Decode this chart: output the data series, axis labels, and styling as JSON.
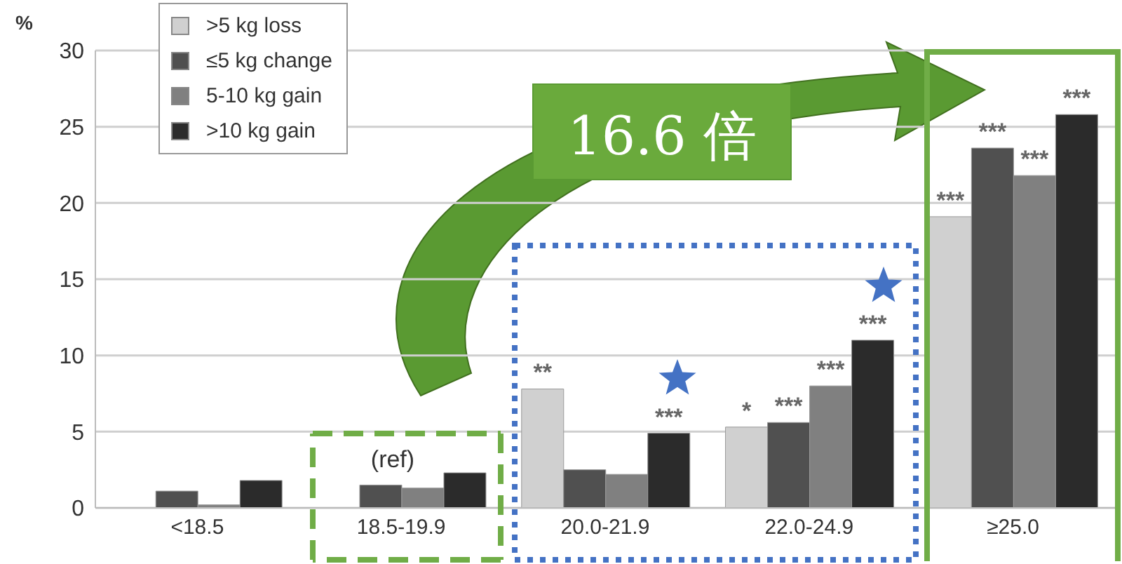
{
  "chart_data": {
    "type": "bar",
    "ylabel": "%",
    "categories": [
      "<18.5",
      "18.5-19.9",
      "20.0-21.9",
      "22.0-24.9",
      "≥25.0"
    ],
    "series": [
      {
        "name": ">5 kg loss",
        "color": "#d0d0d0",
        "values": [
          null,
          null,
          7.8,
          5.3,
          19.1
        ],
        "value_labels": [
          null,
          null,
          "**",
          "*",
          "***"
        ]
      },
      {
        "name": "≤5 kg change",
        "color": "#505050",
        "values": [
          1.1,
          1.5,
          2.5,
          5.6,
          23.6
        ],
        "value_labels": [
          null,
          null,
          null,
          "***",
          "***"
        ]
      },
      {
        "name": "5-10 kg gain",
        "color": "#808080",
        "values": [
          0.2,
          1.3,
          2.2,
          8.0,
          21.8
        ],
        "value_labels": [
          null,
          null,
          null,
          "***",
          "***"
        ]
      },
      {
        "name": ">10 kg gain",
        "color": "#2b2b2b",
        "values": [
          1.8,
          2.3,
          4.9,
          11.0,
          25.8
        ],
        "value_labels": [
          null,
          null,
          "***",
          "***",
          "***"
        ]
      }
    ],
    "ylim": [
      0,
      30
    ],
    "yticks": [
      0,
      5,
      10,
      15,
      20,
      25,
      30
    ],
    "grid": "y",
    "legend": "top left",
    "annotations": [
      "(ref)",
      "16.6 倍"
    ]
  }
}
